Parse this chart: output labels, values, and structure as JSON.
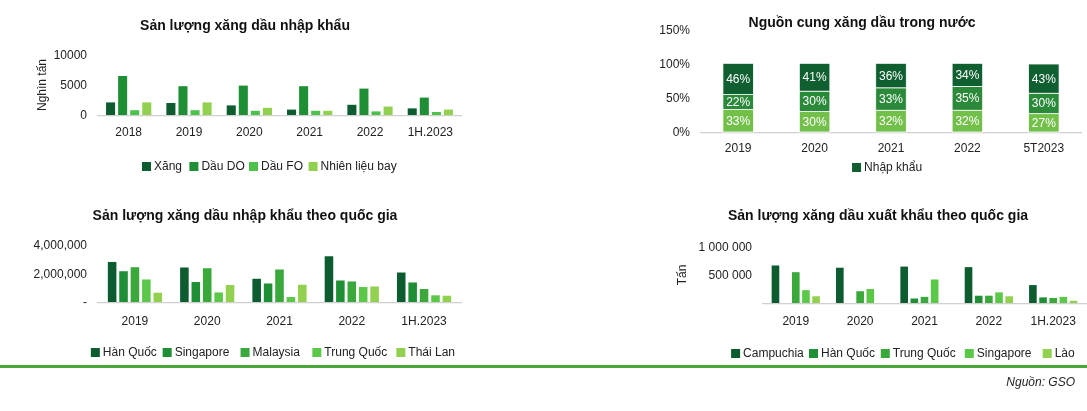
{
  "chart_data": [
    {
      "type": "bar",
      "title": "Sản lượng xăng dầu nhập khẩu",
      "ylabel": "Nghìn tấn",
      "categories": [
        "2018",
        "2019",
        "2020",
        "2021",
        "2022",
        "1H.2023"
      ],
      "series": [
        {
          "name": "Xăng",
          "color": "#0d5c30",
          "values": [
            2100,
            2000,
            1600,
            900,
            1700,
            1100
          ]
        },
        {
          "name": "Dầu DO",
          "color": "#1f8f36",
          "values": [
            6500,
            4800,
            4900,
            4800,
            4400,
            2900
          ]
        },
        {
          "name": "Dầu FO",
          "color": "#4cc24a",
          "values": [
            800,
            800,
            700,
            700,
            600,
            500
          ]
        },
        {
          "name": "Nhiên liệu bay",
          "color": "#92d050",
          "values": [
            2100,
            2100,
            1200,
            700,
            1400,
            900
          ]
        }
      ],
      "ylim": [
        0,
        10000
      ],
      "yticks": [
        0,
        5000,
        10000
      ],
      "grid": false,
      "legend": "bottom"
    },
    {
      "type": "bar",
      "stacked": true,
      "title": "Nguồn cung xăng dầu trong nước",
      "categories": [
        "2019",
        "2020",
        "2021",
        "2022",
        "5T2023"
      ],
      "series": [
        {
          "color": "#72c04a",
          "values": [
            33,
            30,
            32,
            32,
            27
          ],
          "value_labels": [
            "33%",
            "30%",
            "32%",
            "32%",
            "27%"
          ]
        },
        {
          "color": "#2a8a3a",
          "values": [
            22,
            30,
            33,
            35,
            30
          ],
          "value_labels": [
            "22%",
            "30%",
            "33%",
            "35%",
            "30%"
          ]
        },
        {
          "name": "Nhập khẩu",
          "color": "#0f5f30",
          "values": [
            46,
            41,
            36,
            34,
            43
          ],
          "value_labels": [
            "46%",
            "41%",
            "36%",
            "34%",
            "43%"
          ]
        }
      ],
      "ylim": [
        0,
        150
      ],
      "yticks": [
        {
          "value": 0,
          "label": "0%"
        },
        {
          "value": 50,
          "label": "50%"
        },
        {
          "value": 100,
          "label": "100%"
        },
        {
          "value": 150,
          "label": "150%"
        }
      ],
      "grid": false,
      "legend": "bottom"
    },
    {
      "type": "bar",
      "title": "Sản lượng xăng dầu nhập khẩu theo quốc gia",
      "categories": [
        "2019",
        "2020",
        "2021",
        "2022",
        "1H.2023"
      ],
      "series": [
        {
          "name": "Hàn Quốc",
          "color": "#0d5c30",
          "values": [
            2810000,
            2420000,
            1630000,
            3210000,
            2070000
          ]
        },
        {
          "name": "Singapore",
          "color": "#1f8f36",
          "values": [
            2160000,
            1400000,
            1300000,
            1510000,
            1370000
          ]
        },
        {
          "name": "Malaysia",
          "color": "#3aa83a",
          "values": [
            2440000,
            2370000,
            2280000,
            1440000,
            910000
          ]
        },
        {
          "name": "Trung Quốc",
          "color": "#5cc84a",
          "values": [
            1580000,
            670000,
            350000,
            1050000,
            470000
          ]
        },
        {
          "name": "Thái Lan",
          "color": "#92d050",
          "values": [
            650000,
            1190000,
            1210000,
            1090000,
            440000
          ]
        }
      ],
      "ylim": [
        0,
        4000000
      ],
      "yticks": [
        {
          "value": 0,
          "label": "-"
        },
        {
          "value": 2000000,
          "label": "2,000,000"
        },
        {
          "value": 4000000,
          "label": "4,000,000"
        }
      ],
      "grid": false,
      "legend": "bottom"
    },
    {
      "type": "bar",
      "title": "Sản lượng xăng dầu xuất khẩu theo quốc gia",
      "ylabel": "Tấn",
      "categories": [
        "2019",
        "2020",
        "2021",
        "2022",
        "1H.2023"
      ],
      "series": [
        {
          "name": "Campuchia",
          "color": "#0d5c30",
          "values": [
            670000,
            630000,
            650000,
            640000,
            320000
          ]
        },
        {
          "name": "Hàn Quốc",
          "color": "#1f8f36",
          "values": [
            null,
            null,
            80000,
            130000,
            100000
          ]
        },
        {
          "name": "Trung Quốc",
          "color": "#3aa83a",
          "values": [
            550000,
            210000,
            110000,
            130000,
            90000
          ]
        },
        {
          "name": "Singapore",
          "color": "#5cc84a",
          "values": [
            230000,
            250000,
            420000,
            190000,
            110000
          ]
        },
        {
          "name": "Lào",
          "color": "#92d050",
          "values": [
            120000,
            null,
            null,
            120000,
            40000
          ]
        }
      ],
      "ylim": [
        0,
        1000000
      ],
      "yticks": [
        {
          "value": 500000,
          "label": "500 000"
        },
        {
          "value": 1000000,
          "label": "1 000 000"
        }
      ],
      "grid": false,
      "legend": "bottom",
      "annotations": [
        "Nguồn: GSO"
      ]
    }
  ]
}
